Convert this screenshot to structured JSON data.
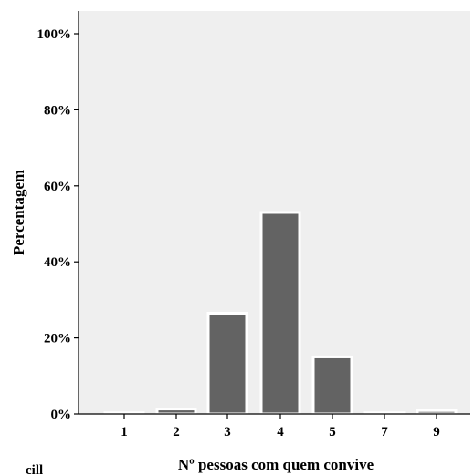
{
  "chart_data": {
    "type": "bar",
    "title": "",
    "xlabel": "Nº pessoas com quem convive",
    "ylabel": "Percentagem",
    "categories": [
      "1",
      "2",
      "3",
      "4",
      "5",
      "7",
      "9"
    ],
    "values": [
      0.3,
      1.3,
      26.5,
      53.0,
      15.0,
      0.3,
      0.9
    ],
    "ylim": [
      0,
      100
    ],
    "yticks": [
      "0%",
      "20%",
      "40%",
      "60%",
      "80%",
      "100%"
    ],
    "ytick_values": [
      0,
      20,
      40,
      60,
      80,
      100
    ],
    "grid": false,
    "colors": {
      "bar_fill": "#636363",
      "bar_edge": "#ffffff",
      "plot_background": "#efefef",
      "axis": "#000000"
    }
  },
  "stray_text": "cill"
}
